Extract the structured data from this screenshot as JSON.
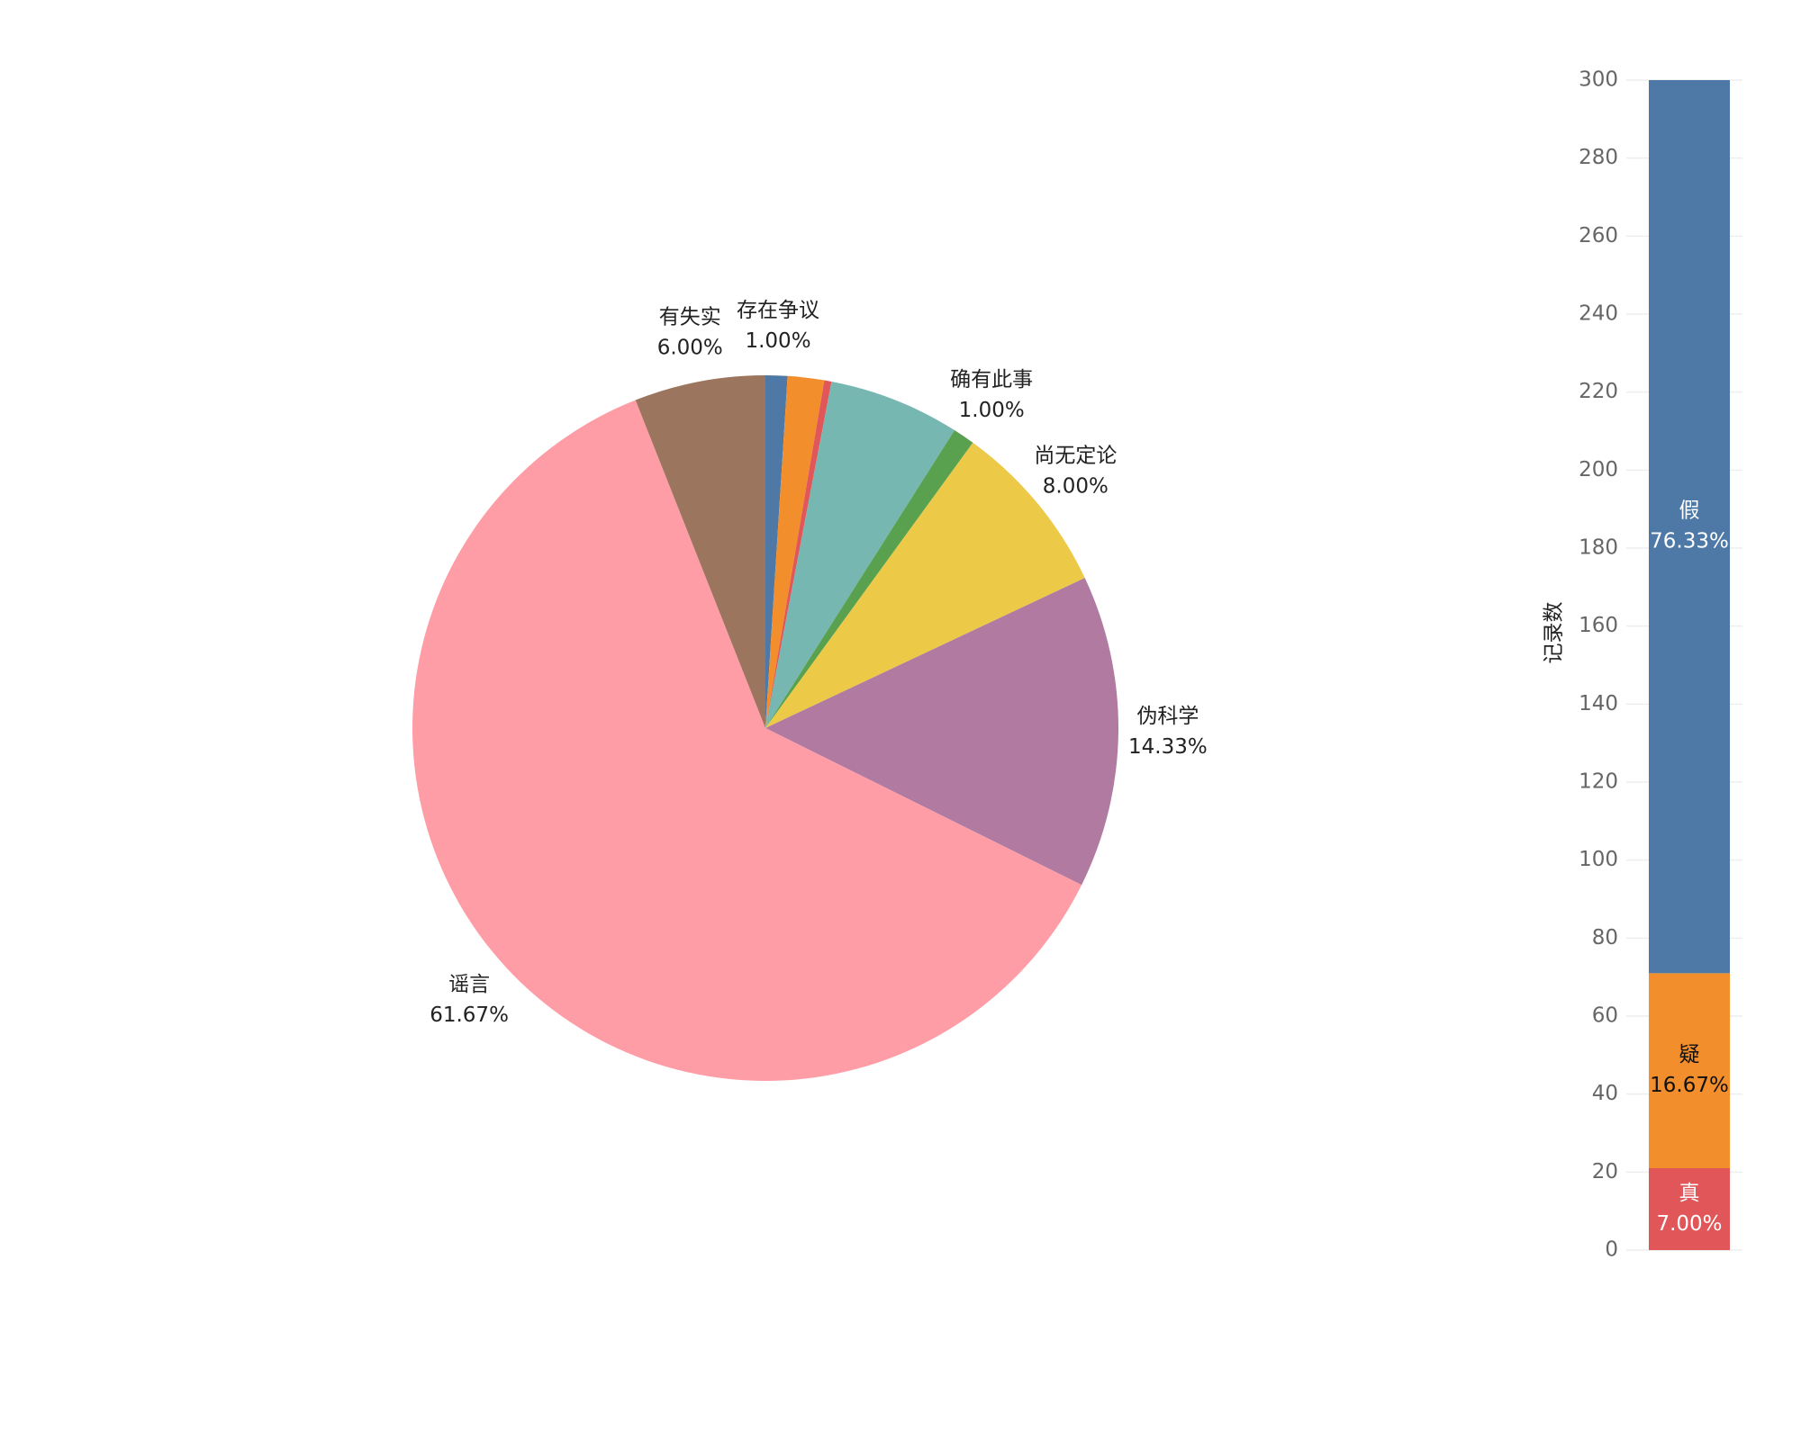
{
  "chart_data": [
    {
      "type": "pie",
      "categories": [
        "存在争议",
        null,
        null,
        null,
        "确有此事",
        "尚无定论",
        "伪科学",
        "谣言",
        "有失实"
      ],
      "values": [
        1.0,
        1.67,
        0.33,
        6.0,
        1.0,
        8.0,
        14.33,
        61.67,
        6.0
      ],
      "value_labels": [
        "1.00%",
        null,
        null,
        null,
        "1.00%",
        "8.00%",
        "14.33%",
        "61.67%",
        "6.00%"
      ],
      "colors": [
        "#4e79a7",
        "#f28e2b",
        "#e15759",
        "#76b7b2",
        "#59a14f",
        "#edc948",
        "#b07aa1",
        "#ff9da7",
        "#9c755f"
      ]
    },
    {
      "type": "stacked_bar",
      "y_label": "记录数",
      "series": [
        {
          "name": "真",
          "color": "#e15759",
          "values": [
            21
          ],
          "value_labels": [
            "7.00%"
          ]
        },
        {
          "name": "疑",
          "color": "#f28e2b",
          "values": [
            50
          ],
          "value_labels": [
            "16.67%"
          ]
        },
        {
          "name": "假",
          "color": "#4e79a7",
          "values": [
            229
          ],
          "value_labels": [
            "76.33%"
          ]
        }
      ],
      "ylim": [
        0,
        300
      ],
      "yticks": [
        0,
        20,
        40,
        60,
        80,
        100,
        120,
        140,
        160,
        180,
        200,
        220,
        240,
        260,
        280,
        300
      ],
      "grid": true
    }
  ]
}
